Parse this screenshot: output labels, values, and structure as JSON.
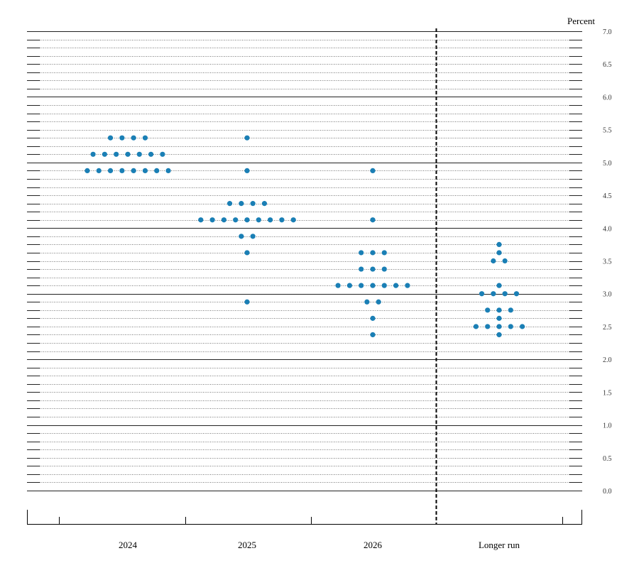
{
  "chart_data": {
    "type": "scatter",
    "unit_label": "Percent",
    "ylim": [
      0.0,
      7.0
    ],
    "y_ticks": [
      "0.0",
      "0.5",
      "1.0",
      "1.5",
      "2.0",
      "2.5",
      "3.0",
      "3.5",
      "4.0",
      "4.5",
      "5.0",
      "5.5",
      "6.0",
      "6.5",
      "7.0"
    ],
    "categories": [
      "2024",
      "2025",
      "2026",
      "Longer run"
    ],
    "dot_color": "#1a7fb5",
    "grid": "horizontal lines every 0.125, solid at whole numbers, dotted otherwise",
    "separator_before": "Longer run",
    "series": [
      {
        "category": "2024",
        "points": [
          {
            "y": 5.375,
            "count": 4
          },
          {
            "y": 5.125,
            "count": 7
          },
          {
            "y": 4.875,
            "count": 8
          }
        ]
      },
      {
        "category": "2025",
        "points": [
          {
            "y": 5.375,
            "count": 1
          },
          {
            "y": 4.875,
            "count": 1
          },
          {
            "y": 4.375,
            "count": 4
          },
          {
            "y": 4.125,
            "count": 9
          },
          {
            "y": 3.875,
            "count": 2
          },
          {
            "y": 3.625,
            "count": 1
          },
          {
            "y": 2.875,
            "count": 1
          }
        ]
      },
      {
        "category": "2026",
        "points": [
          {
            "y": 4.875,
            "count": 1
          },
          {
            "y": 4.125,
            "count": 1
          },
          {
            "y": 3.625,
            "count": 3
          },
          {
            "y": 3.375,
            "count": 3
          },
          {
            "y": 3.125,
            "count": 7
          },
          {
            "y": 2.875,
            "count": 2
          },
          {
            "y": 2.625,
            "count": 1
          },
          {
            "y": 2.375,
            "count": 1
          }
        ]
      },
      {
        "category": "Longer run",
        "points": [
          {
            "y": 3.75,
            "count": 1
          },
          {
            "y": 3.625,
            "count": 1
          },
          {
            "y": 3.5,
            "count": 2
          },
          {
            "y": 3.125,
            "count": 1
          },
          {
            "y": 3.0,
            "count": 4
          },
          {
            "y": 2.75,
            "count": 3
          },
          {
            "y": 2.625,
            "count": 1
          },
          {
            "y": 2.5,
            "count": 5
          },
          {
            "y": 2.375,
            "count": 1
          }
        ]
      }
    ]
  }
}
